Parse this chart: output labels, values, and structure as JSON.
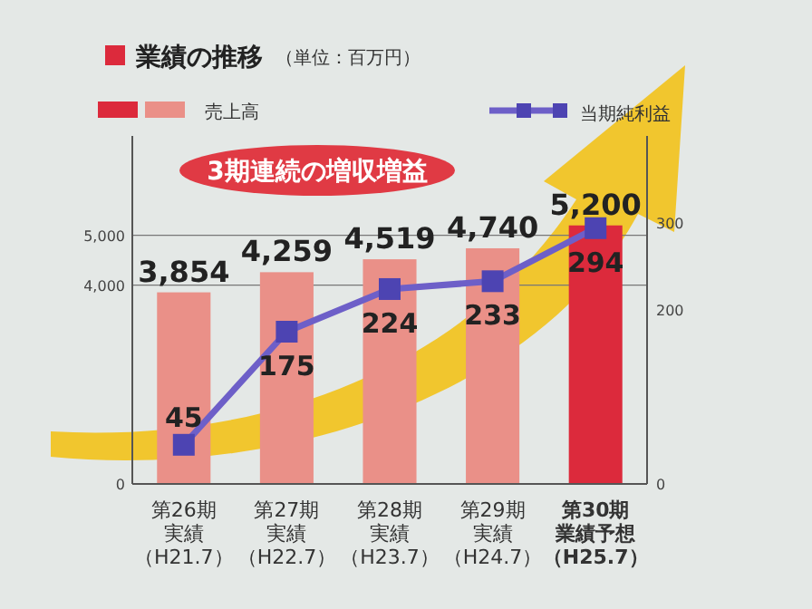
{
  "chart_data": {
    "type": "bar",
    "title": "業績の推移",
    "subtitle": "（単位：百万円）",
    "categories": [
      "第26期実績（H21.7）",
      "第27期実績（H22.7）",
      "第28期実績（H23.7）",
      "第29期実績（H24.7）",
      "第30期業績予想（H25.7）"
    ],
    "series": [
      {
        "name": "売上高",
        "color": "#ea9088",
        "colors": [
          "#ea9088",
          "#ea9088",
          "#ea9088",
          "#ea9088",
          "#dc2a3c"
        ],
        "values": [
          3854,
          4259,
          4519,
          4740,
          5200
        ],
        "value_labels": [
          "3,854",
          "4,259",
          "4,519",
          "4,740",
          "5,200"
        ]
      },
      {
        "name": "当期純利益",
        "type": "line",
        "axis": "y2",
        "color": "#6d5fc8",
        "values": [
          45,
          175,
          224,
          233,
          294
        ]
      }
    ],
    "ylim": [
      0,
      7000
    ],
    "yticks": [
      0,
      {
        "value": 4000,
        "label": "4,000"
      },
      {
        "value": 5000,
        "label": "5,000"
      }
    ],
    "y2lim": [
      0,
      400
    ],
    "y2ticks": [
      0,
      200,
      300
    ],
    "data_labels": true,
    "grid": "y",
    "legend": "top",
    "marker": "square",
    "annotations": [
      "3期連続の増収増益"
    ]
  }
}
